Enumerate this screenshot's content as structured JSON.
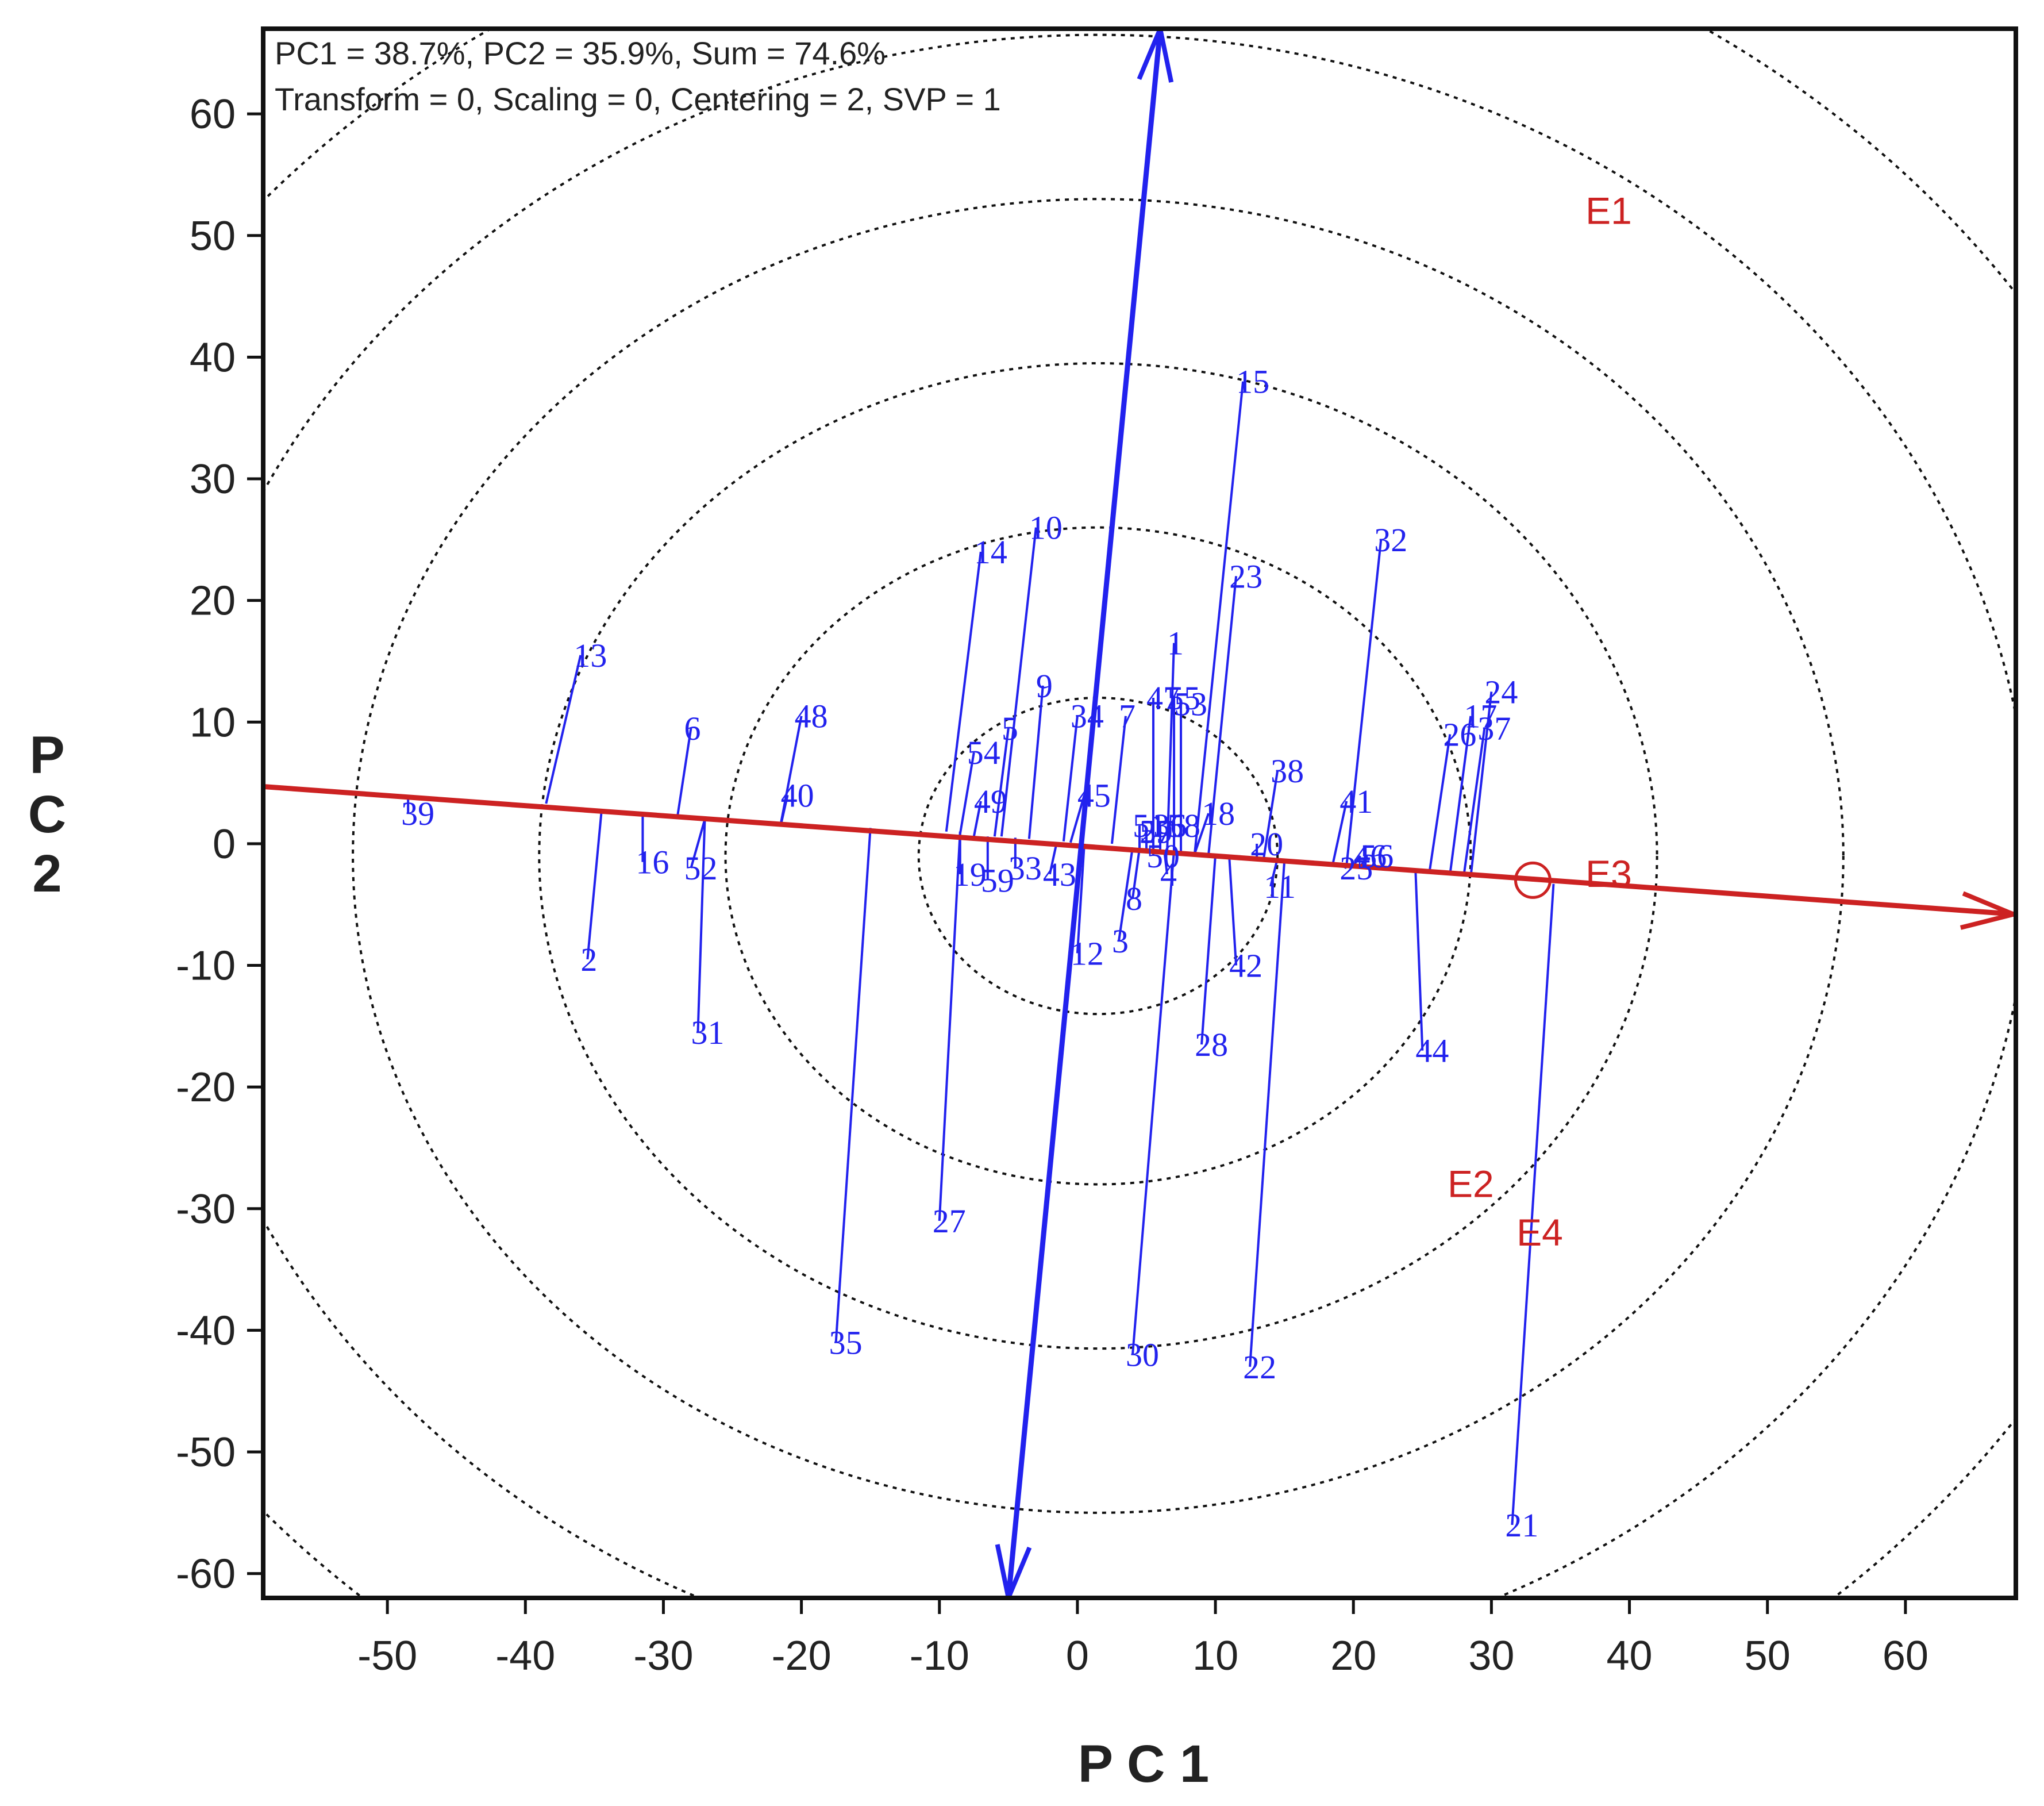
{
  "chart_data": {
    "type": "scatter",
    "title": "",
    "info_lines": [
      "PC1 = 38.7%, PC2 = 35.9%, Sum = 74.6%",
      "Transform = 0, Scaling = 0, Centering = 2, SVP = 1"
    ],
    "xlabel": "P C 1",
    "ylabel_chars": [
      "P",
      "C",
      "2"
    ],
    "xlim": [
      -59,
      68
    ],
    "ylim": [
      -62,
      67
    ],
    "xticks": [
      -50,
      -40,
      -30,
      -20,
      -10,
      0,
      10,
      20,
      30,
      40,
      50,
      60
    ],
    "yticks": [
      -60,
      -50,
      -40,
      -30,
      -20,
      -10,
      0,
      10,
      20,
      30,
      40,
      50,
      60
    ],
    "concentric_circle_radii": [
      13,
      27,
      40.5,
      54,
      67.5,
      81
    ],
    "circle_center": [
      1.5,
      -1
    ],
    "colors": {
      "genotype": "#2222ee",
      "environment": "#cc2222",
      "circles": "#111111",
      "frame": "#111111"
    },
    "aec_abscissa": {
      "from": [
        -59,
        4.7
      ],
      "to": [
        68,
        -5.8
      ]
    },
    "aec_ordinate": {
      "from": [
        -5,
        -62
      ],
      "to": [
        6,
        67
      ]
    },
    "average_environment_marker": [
      33,
      -3
    ],
    "environments": [
      {
        "label": "E1",
        "x": 38.5,
        "y": 52
      },
      {
        "label": "E2",
        "x": 28.5,
        "y": -28
      },
      {
        "label": "E3",
        "x": 38.5,
        "y": -2.5
      },
      {
        "label": "E4",
        "x": 33.5,
        "y": -32
      }
    ],
    "genotypes": [
      {
        "label": "1",
        "x": 7.0,
        "y": 16.5,
        "px": 6.5,
        "py": -0.7
      },
      {
        "label": "2",
        "x": -35.5,
        "y": -9.5,
        "px": -34.5,
        "py": 2.5
      },
      {
        "label": "3",
        "x": 3.0,
        "y": -8.0,
        "px": 4.0,
        "py": -0.3
      },
      {
        "label": "4",
        "x": 6.5,
        "y": -2.5,
        "px": 6.3,
        "py": -0.6
      },
      {
        "label": "5",
        "x": -5.0,
        "y": 9.5,
        "px": -6.0,
        "py": 0.6
      },
      {
        "label": "6",
        "x": -28.0,
        "y": 9.5,
        "px": -29.0,
        "py": 2.1
      },
      {
        "label": "7",
        "x": 3.5,
        "y": 10.5,
        "px": 2.5,
        "py": 0.0
      },
      {
        "label": "8",
        "x": 4.0,
        "y": -4.5,
        "px": 4.5,
        "py": -0.4
      },
      {
        "label": "9",
        "x": -2.5,
        "y": 13.0,
        "px": -3.5,
        "py": 0.4
      },
      {
        "label": "10",
        "x": -3.0,
        "y": 26.0,
        "px": -5.5,
        "py": 0.6
      },
      {
        "label": "11",
        "x": 14.0,
        "y": -3.5,
        "px": 14.5,
        "py": -1.2
      },
      {
        "label": "12",
        "x": 0.0,
        "y": -9.0,
        "px": 0.5,
        "py": 0.0
      },
      {
        "label": "13",
        "x": -36.0,
        "y": 15.5,
        "px": -38.5,
        "py": 3.3
      },
      {
        "label": "14",
        "x": -7.0,
        "y": 24.0,
        "px": -9.5,
        "py": 1.0
      },
      {
        "label": "15",
        "x": 12.0,
        "y": 38.0,
        "px": 8.5,
        "py": -0.8
      },
      {
        "label": "16",
        "x": -31.5,
        "y": -1.5,
        "px": -31.5,
        "py": 2.3
      },
      {
        "label": "17",
        "x": 28.5,
        "y": 10.5,
        "px": 27.0,
        "py": -2.5
      },
      {
        "label": "18",
        "x": 9.5,
        "y": 2.5,
        "px": 8.5,
        "py": -0.8
      },
      {
        "label": "19",
        "x": -8.5,
        "y": -2.5,
        "px": -8.5,
        "py": 0.8
      },
      {
        "label": "20",
        "x": 13.0,
        "y": 0.0,
        "px": 13.0,
        "py": -1.1
      },
      {
        "label": "21",
        "x": 31.5,
        "y": -56.0,
        "px": 34.5,
        "py": -3.3
      },
      {
        "label": "22",
        "x": 12.5,
        "y": -43.0,
        "px": 15.0,
        "py": -1.4
      },
      {
        "label": "23",
        "x": 11.5,
        "y": 22.0,
        "px": 9.5,
        "py": -0.9
      },
      {
        "label": "24",
        "x": 30.0,
        "y": 12.5,
        "px": 28.5,
        "py": -2.7
      },
      {
        "label": "25",
        "x": 19.5,
        "y": -2.0,
        "px": 19.0,
        "py": -1.7
      },
      {
        "label": "26",
        "x": 27.0,
        "y": 9.0,
        "px": 25.5,
        "py": -2.4
      },
      {
        "label": "27",
        "x": -10.0,
        "y": -31.0,
        "px": -8.5,
        "py": 1.0
      },
      {
        "label": "28",
        "x": 9.0,
        "y": -16.5,
        "px": 10.0,
        "py": -0.9
      },
      {
        "label": "29",
        "x": 5.0,
        "y": 1.0,
        "px": 5.0,
        "py": -0.5
      },
      {
        "label": "30",
        "x": 4.0,
        "y": -42.0,
        "px": 7.0,
        "py": -0.6
      },
      {
        "label": "31",
        "x": -27.5,
        "y": -15.5,
        "px": -27.0,
        "py": 2.0
      },
      {
        "label": "32",
        "x": 22.0,
        "y": 25.0,
        "px": 19.5,
        "py": -1.8
      },
      {
        "label": "33",
        "x": -4.5,
        "y": -2.0,
        "px": -4.5,
        "py": 0.5
      },
      {
        "label": "34",
        "x": 0.0,
        "y": 10.5,
        "px": -1.0,
        "py": 0.2
      },
      {
        "label": "35",
        "x": -17.5,
        "y": -41.0,
        "px": -15.0,
        "py": 1.3
      },
      {
        "label": "36",
        "x": 6.0,
        "y": 1.5,
        "px": 6.0,
        "py": -0.6
      },
      {
        "label": "37",
        "x": 29.5,
        "y": 9.5,
        "px": 28.0,
        "py": -2.6
      },
      {
        "label": "38",
        "x": 14.5,
        "y": 6.0,
        "px": 13.5,
        "py": -1.2
      },
      {
        "label": "39",
        "x": -48.5,
        "y": 2.5,
        "px": -48.5,
        "py": 3.9
      },
      {
        "label": "40",
        "x": -21.0,
        "y": 4.0,
        "px": -21.5,
        "py": 1.5
      },
      {
        "label": "41",
        "x": 19.5,
        "y": 3.5,
        "px": 18.5,
        "py": -1.7
      },
      {
        "label": "42",
        "x": 11.5,
        "y": -10.0,
        "px": 11.0,
        "py": -1.0
      },
      {
        "label": "43",
        "x": -2.0,
        "y": -2.5,
        "px": -1.5,
        "py": 0.1
      },
      {
        "label": "44",
        "x": 25.0,
        "y": -17.0,
        "px": 24.5,
        "py": -2.2
      },
      {
        "label": "45",
        "x": 0.5,
        "y": 4.0,
        "px": -0.5,
        "py": 0.1
      },
      {
        "label": "46",
        "x": 20.5,
        "y": -1.0,
        "px": 20.0,
        "py": -1.8
      },
      {
        "label": "47",
        "x": 5.5,
        "y": 12.0,
        "px": 5.5,
        "py": -0.5
      },
      {
        "label": "48",
        "x": -20.0,
        "y": 10.5,
        "px": -21.5,
        "py": 1.6
      },
      {
        "label": "49",
        "x": -7.0,
        "y": 3.5,
        "px": -7.5,
        "py": 0.6
      },
      {
        "label": "50",
        "x": 5.5,
        "y": -1.0,
        "px": 5.5,
        "py": -0.5
      },
      {
        "label": "51",
        "x": 4.5,
        "y": 1.5,
        "px": 4.5,
        "py": -0.4
      },
      {
        "label": "52",
        "x": -28.0,
        "y": -2.0,
        "px": -27.0,
        "py": 2.0
      },
      {
        "label": "53",
        "x": 7.5,
        "y": 11.5,
        "px": 7.5,
        "py": -0.7
      },
      {
        "label": "54",
        "x": -7.5,
        "y": 7.5,
        "px": -8.5,
        "py": 0.8
      },
      {
        "label": "55",
        "x": 7.0,
        "y": 12.0,
        "px": 7.0,
        "py": -0.6
      },
      {
        "label": "56",
        "x": 21.0,
        "y": -1.0,
        "px": 20.5,
        "py": -1.9
      },
      {
        "label": "57",
        "x": 5.0,
        "y": 1.0,
        "px": 5.0,
        "py": -0.5
      },
      {
        "label": "58",
        "x": 7.0,
        "y": 1.5,
        "px": 7.0,
        "py": -0.6
      },
      {
        "label": "59",
        "x": -6.5,
        "y": -3.0,
        "px": -6.5,
        "py": 0.6
      }
    ]
  }
}
